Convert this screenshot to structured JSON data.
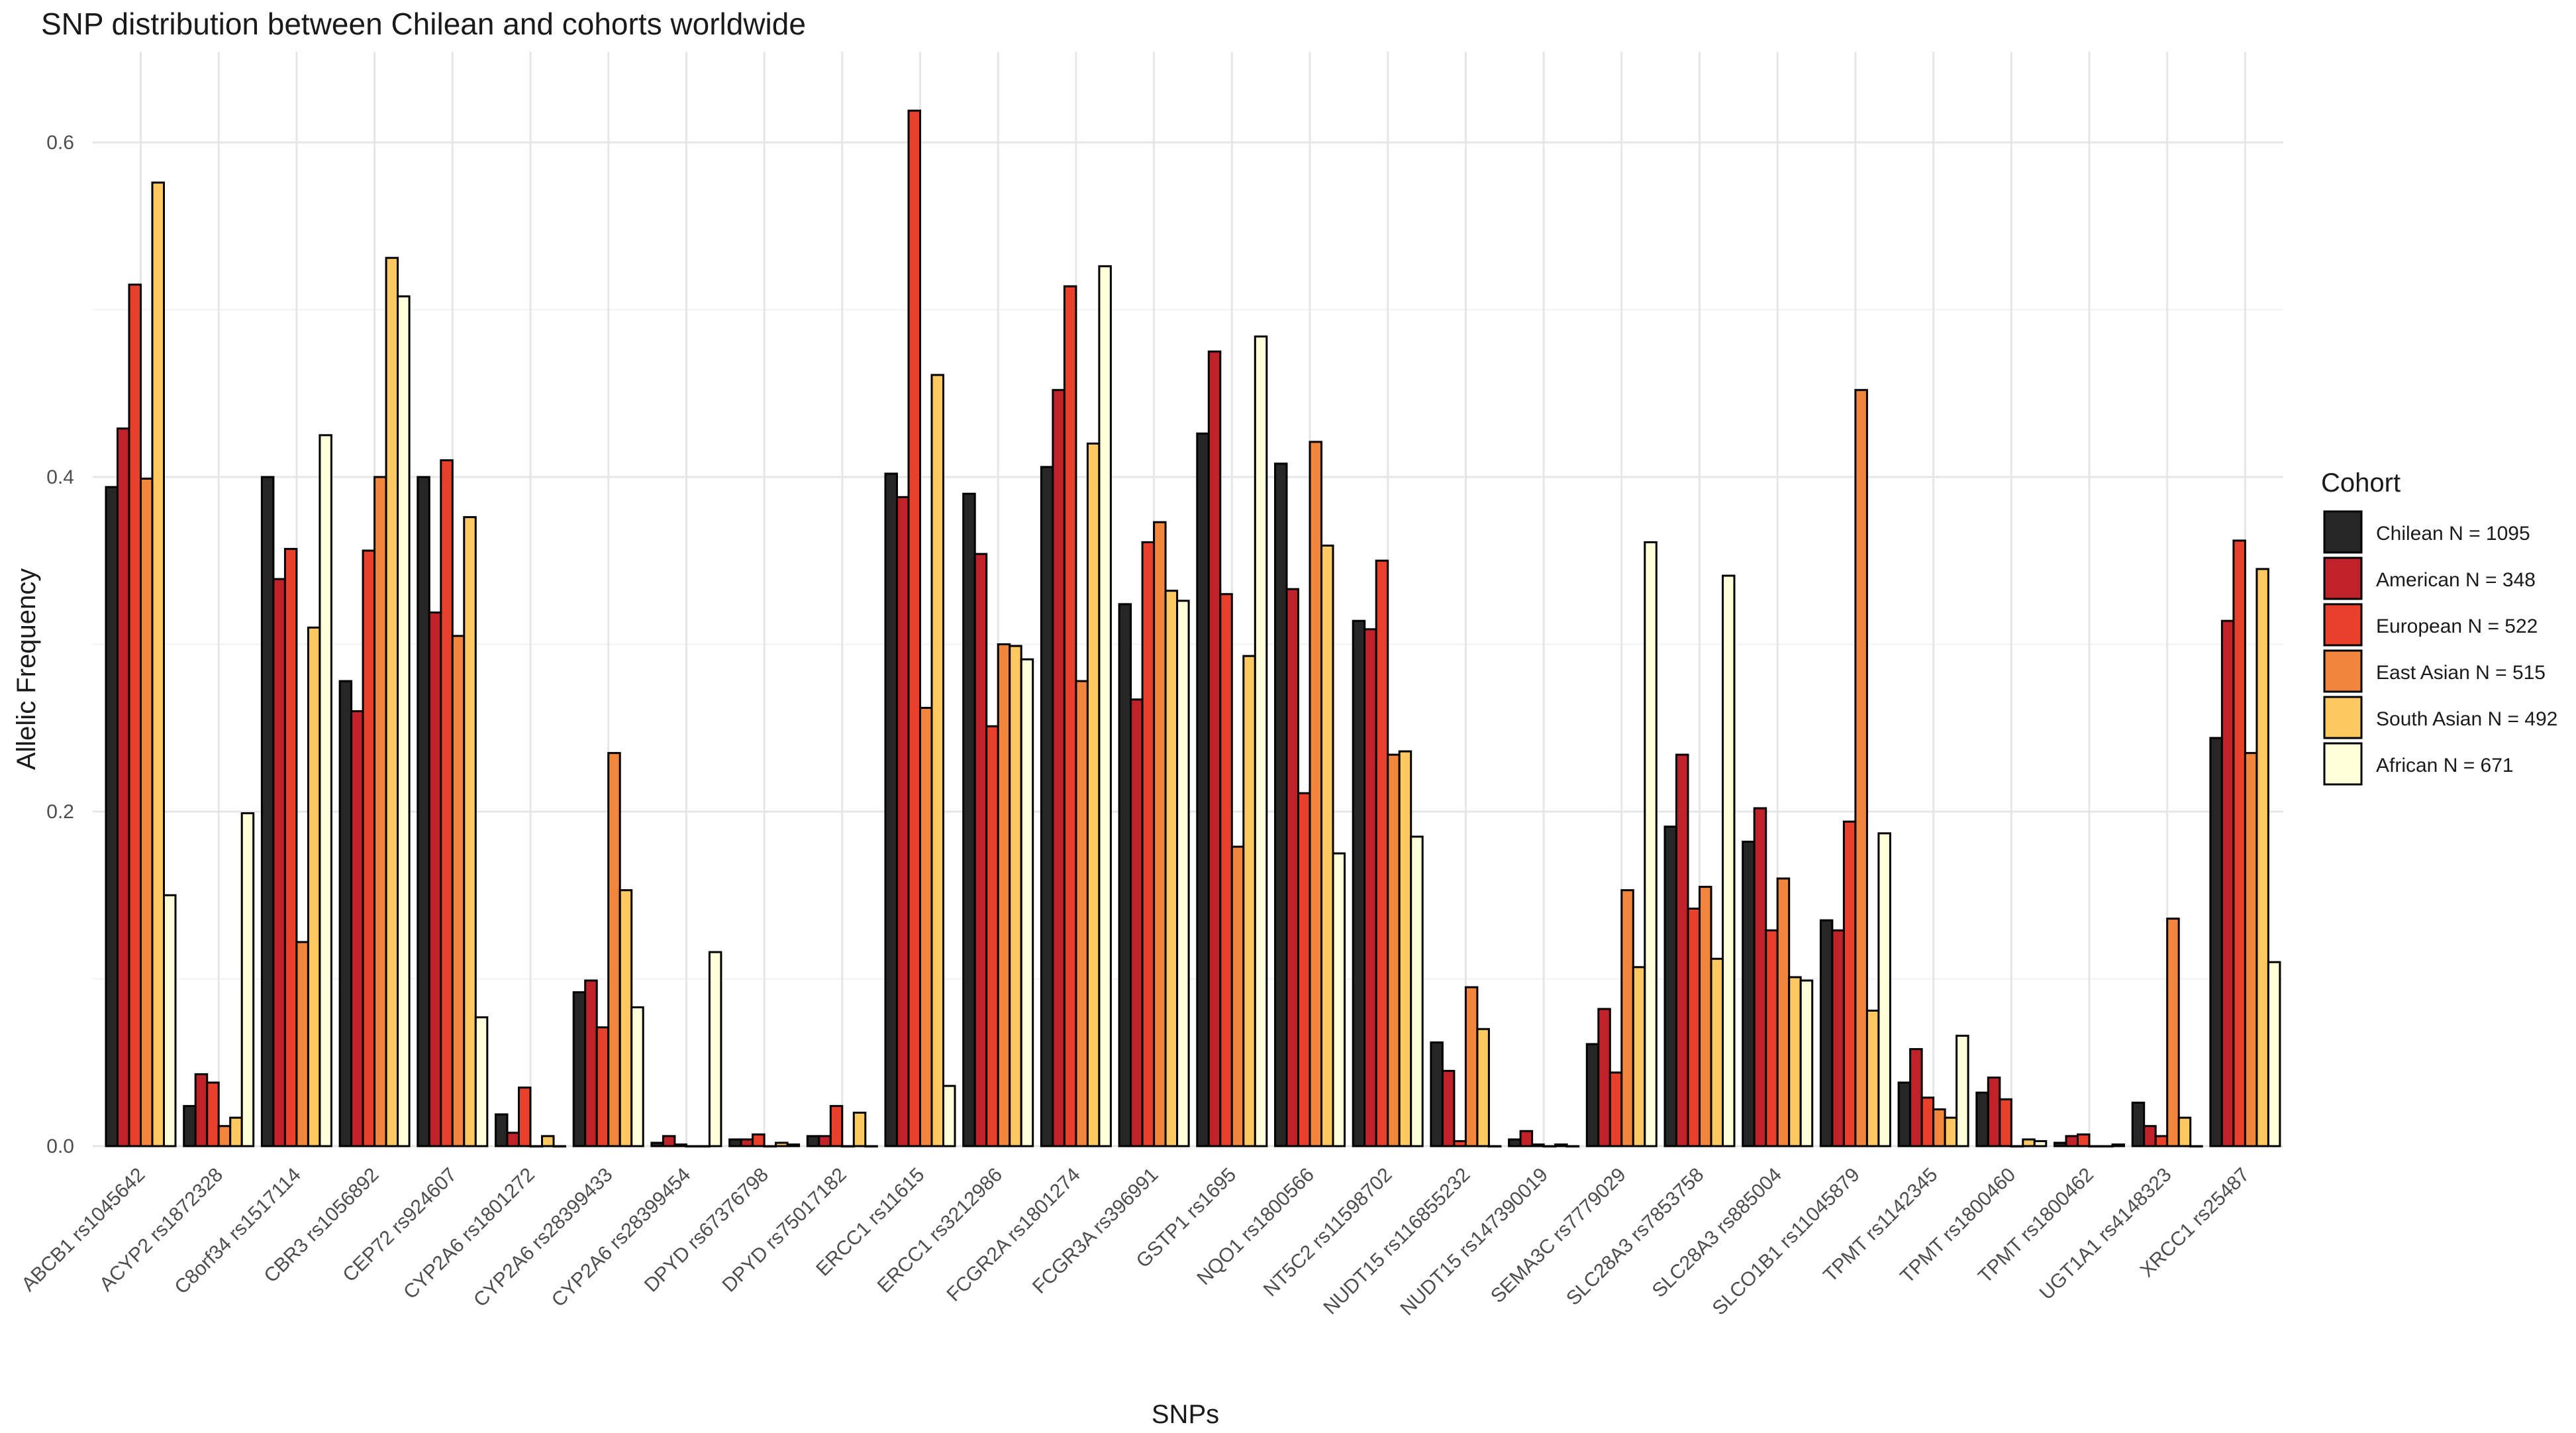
{
  "chart_data": {
    "type": "bar",
    "title": "SNP distribution between Chilean and cohorts worldwide",
    "xlabel": "SNPs",
    "ylabel": "Allelic Frequency",
    "ylim": [
      0,
      0.62
    ],
    "yticks": [
      0.0,
      0.2,
      0.4,
      0.6
    ],
    "ytick_labels": [
      "0.0",
      "0.2",
      "0.4",
      "0.6"
    ],
    "grid": true,
    "legend": {
      "title": "Cohort",
      "position": "right"
    },
    "categories": [
      "ABCB1 rs1045642",
      "ACYP2 rs1872328",
      "C8orf34 rs1517114",
      "CBR3 rs1056892",
      "CEP72 rs924607",
      "CYP2A6 rs1801272",
      "CYP2A6 rs28399433",
      "CYP2A6 rs28399454",
      "DPYD rs67376798",
      "DPYD rs75017182",
      "ERCC1 rs11615",
      "ERCC1 rs3212986",
      "FCGR2A rs1801274",
      "FCGR3A rs396991",
      "GSTP1 rs1695",
      "NQO1 rs1800566",
      "NT5C2 rs11598702",
      "NUDT15 rs116855232",
      "NUDT15 rs147390019",
      "SEMA3C rs7779029",
      "SLC28A3 rs7853758",
      "SLC28A3 rs885004",
      "SLCO1B1 rs11045879",
      "TPMT rs1142345",
      "TPMT rs1800460",
      "TPMT rs1800462",
      "UGT1A1 rs4148323",
      "XRCC1 rs25487"
    ],
    "series": [
      {
        "name": "Chilean N = 1095",
        "color": "#262626",
        "values": [
          0.394,
          0.024,
          0.4,
          0.278,
          0.4,
          0.019,
          0.092,
          0.002,
          0.004,
          0.006,
          0.402,
          0.39,
          0.406,
          0.324,
          0.426,
          0.408,
          0.314,
          0.062,
          0.004,
          0.061,
          0.191,
          0.182,
          0.135,
          0.038,
          0.032,
          0.002,
          0.026,
          0.244
        ]
      },
      {
        "name": "American N = 348",
        "color": "#c0222a",
        "values": [
          0.429,
          0.043,
          0.339,
          0.26,
          0.319,
          0.008,
          0.099,
          0.006,
          0.004,
          0.006,
          0.388,
          0.354,
          0.452,
          0.267,
          0.475,
          0.333,
          0.309,
          0.045,
          0.009,
          0.082,
          0.234,
          0.202,
          0.129,
          0.058,
          0.041,
          0.006,
          0.012,
          0.314
        ]
      },
      {
        "name": "European N = 522",
        "color": "#e8402a",
        "values": [
          0.515,
          0.038,
          0.357,
          0.356,
          0.41,
          0.035,
          0.071,
          0.001,
          0.007,
          0.024,
          0.619,
          0.251,
          0.514,
          0.361,
          0.33,
          0.211,
          0.35,
          0.003,
          0.001,
          0.044,
          0.142,
          0.129,
          0.194,
          0.029,
          0.028,
          0.007,
          0.006,
          0.362
        ]
      },
      {
        "name": "East Asian N = 515",
        "color": "#f3863d",
        "values": [
          0.399,
          0.012,
          0.122,
          0.4,
          0.305,
          0.0,
          0.235,
          0.0,
          0.0,
          0.0,
          0.262,
          0.3,
          0.278,
          0.373,
          0.179,
          0.421,
          0.234,
          0.095,
          0.0,
          0.153,
          0.155,
          0.16,
          0.452,
          0.022,
          0.0,
          0.0,
          0.136,
          0.235
        ]
      },
      {
        "name": "South Asian N = 492",
        "color": "#fdc960",
        "values": [
          0.576,
          0.017,
          0.31,
          0.531,
          0.376,
          0.006,
          0.153,
          0.0,
          0.002,
          0.02,
          0.461,
          0.299,
          0.42,
          0.332,
          0.293,
          0.359,
          0.236,
          0.07,
          0.001,
          0.107,
          0.112,
          0.101,
          0.081,
          0.017,
          0.004,
          0.0,
          0.017,
          0.345
        ]
      },
      {
        "name": "African N = 671",
        "color": "#ffffd9",
        "values": [
          0.15,
          0.199,
          0.425,
          0.508,
          0.077,
          0.0,
          0.083,
          0.116,
          0.001,
          0.0,
          0.036,
          0.291,
          0.526,
          0.326,
          0.484,
          0.175,
          0.185,
          0.0,
          0.0,
          0.361,
          0.341,
          0.099,
          0.187,
          0.066,
          0.003,
          0.001,
          0.0,
          0.11
        ]
      }
    ]
  }
}
